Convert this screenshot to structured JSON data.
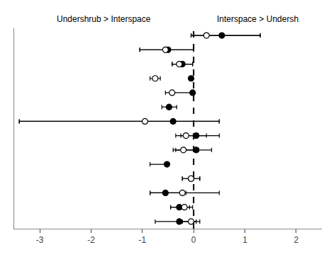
{
  "chart_data": {
    "type": "scatter",
    "categories": [
      null,
      null,
      null,
      null,
      null,
      null,
      null,
      null,
      null,
      null,
      null,
      null,
      null,
      null
    ],
    "xlim": [
      -3.5,
      2.5
    ],
    "xticks": [
      -3,
      -2,
      -1,
      0,
      1,
      2
    ],
    "grid": false,
    "tick_labels": "x",
    "annotations": [
      "Undershrub > Interspace",
      "Interspace > Undersh"
    ],
    "reference_line": {
      "x": 0.0,
      "line_style": "dashed",
      "color": "#000000"
    },
    "series": [
      {
        "marker": "circle",
        "color": "#000000",
        "values": [
          0.55,
          -0.5,
          -0.22,
          -0.05,
          -0.02,
          -0.48,
          -0.4,
          0.05,
          0.05,
          -0.52,
          -0.05,
          -0.55,
          -0.28,
          -0.28
        ],
        "lo": [
          -0.05,
          -1.05,
          -0.42,
          -0.05,
          -0.02,
          -0.62,
          -3.4,
          -0.25,
          -0.35,
          -0.85,
          -0.22,
          -0.85,
          -0.45,
          -0.75
        ],
        "hi": [
          1.3,
          0.0,
          -0.02,
          -0.05,
          -0.02,
          -0.33,
          0.5,
          0.5,
          0.35,
          -0.52,
          0.12,
          -0.15,
          -0.08,
          0.05
        ]
      },
      {
        "marker": "circle-open",
        "color": "#000000",
        "values": [
          0.25,
          -0.55,
          -0.28,
          -0.75,
          -0.42,
          null,
          -0.95,
          -0.15,
          -0.2,
          null,
          -0.05,
          -0.22,
          -0.18,
          -0.05
        ],
        "lo": [
          -0.05,
          -1.05,
          -0.42,
          -0.85,
          -0.55,
          null,
          -3.4,
          -0.35,
          -0.4,
          null,
          -0.22,
          -0.85,
          -0.45,
          -0.22
        ],
        "hi": [
          1.3,
          0.0,
          -0.02,
          -0.65,
          -0.02,
          null,
          0.5,
          0.25,
          0.1,
          null,
          0.12,
          0.5,
          -0.02,
          0.12
        ]
      }
    ]
  }
}
